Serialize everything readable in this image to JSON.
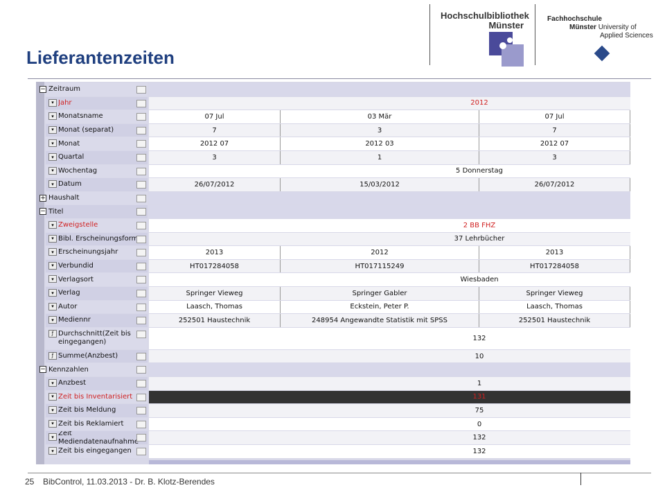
{
  "header": {
    "title": "Lieferantenzeiten",
    "logo_left": [
      "Hochschulbibliothek",
      "Münster"
    ],
    "logo_right": [
      "Fachhochschule",
      "Münster",
      "University of",
      "Applied Sciences"
    ]
  },
  "table": {
    "rows": [
      {
        "label": "Zeitraum",
        "kind": "group-open"
      },
      {
        "label": "Jahr",
        "kind": "dim",
        "highlight": true,
        "merged": "2012"
      },
      {
        "label": "Monatsname",
        "kind": "dim",
        "cells": [
          "07 Jul",
          "03 Mär",
          "07 Jul"
        ]
      },
      {
        "label": "Monat (separat)",
        "kind": "dim",
        "cells": [
          "7",
          "3",
          "7"
        ]
      },
      {
        "label": "Monat",
        "kind": "dim",
        "cells": [
          "2012 07",
          "2012 03",
          "2012 07"
        ]
      },
      {
        "label": "Quartal",
        "kind": "dim",
        "cells": [
          "3",
          "1",
          "3"
        ]
      },
      {
        "label": "Wochentag",
        "kind": "dim",
        "merged": "5 Donnerstag"
      },
      {
        "label": "Datum",
        "kind": "dim",
        "cells": [
          "26/07/2012",
          "15/03/2012",
          "26/07/2012"
        ]
      },
      {
        "label": "Haushalt",
        "kind": "group-closed"
      },
      {
        "label": "Titel",
        "kind": "group-open"
      },
      {
        "label": "Zweigstelle",
        "kind": "dim",
        "highlight": true,
        "merged": "2 BB FHZ"
      },
      {
        "label": "Bibl. Erscheinungsform",
        "kind": "dim",
        "merged": "37 Lehrbücher"
      },
      {
        "label": "Erscheinungsjahr",
        "kind": "dim",
        "cells": [
          "2013",
          "2012",
          "2013"
        ]
      },
      {
        "label": "Verbundid",
        "kind": "dim",
        "cells": [
          "HT017284058",
          "HT017115249",
          "HT017284058"
        ]
      },
      {
        "label": "Verlagsort",
        "kind": "dim",
        "merged": "Wiesbaden"
      },
      {
        "label": "Verlag",
        "kind": "dim",
        "cells": [
          "Springer Vieweg",
          "Springer Gabler",
          "Springer Vieweg"
        ]
      },
      {
        "label": "Autor",
        "kind": "dim",
        "cells": [
          "Laasch, Thomas",
          "Eckstein, Peter P.",
          "Laasch, Thomas"
        ]
      },
      {
        "label": "Mediennr",
        "kind": "dim",
        "cells": [
          "252501 Haustechnik",
          "248954 Angewandte Statistik mit SPSS",
          "252501 Haustechnik"
        ]
      },
      {
        "label": "Durchschnitt(Zeit bis eingegangen)",
        "kind": "measure",
        "merged": "132"
      },
      {
        "label": "Summe(Anzbest)",
        "kind": "measure",
        "merged": "10"
      },
      {
        "label": "Kennzahlen",
        "kind": "group-open"
      },
      {
        "label": "Anzbest",
        "kind": "dim",
        "merged": "1"
      },
      {
        "label": "Zeit bis Inventarisiert",
        "kind": "dim",
        "highlight": true,
        "selected": true,
        "merged": "131"
      },
      {
        "label": "Zeit bis Meldung",
        "kind": "dim",
        "merged": "75"
      },
      {
        "label": "Zeit bis Reklamiert",
        "kind": "dim",
        "merged": "0"
      },
      {
        "label": "Zeit Mediendatenaufnahme",
        "kind": "dim",
        "merged": "132"
      },
      {
        "label": "Zeit bis eingegangen",
        "kind": "dim",
        "merged": "132"
      }
    ]
  },
  "footer": {
    "page": "25",
    "text": "BibControl, 11.03.2013 - Dr. B. Klotz-Berendes"
  }
}
